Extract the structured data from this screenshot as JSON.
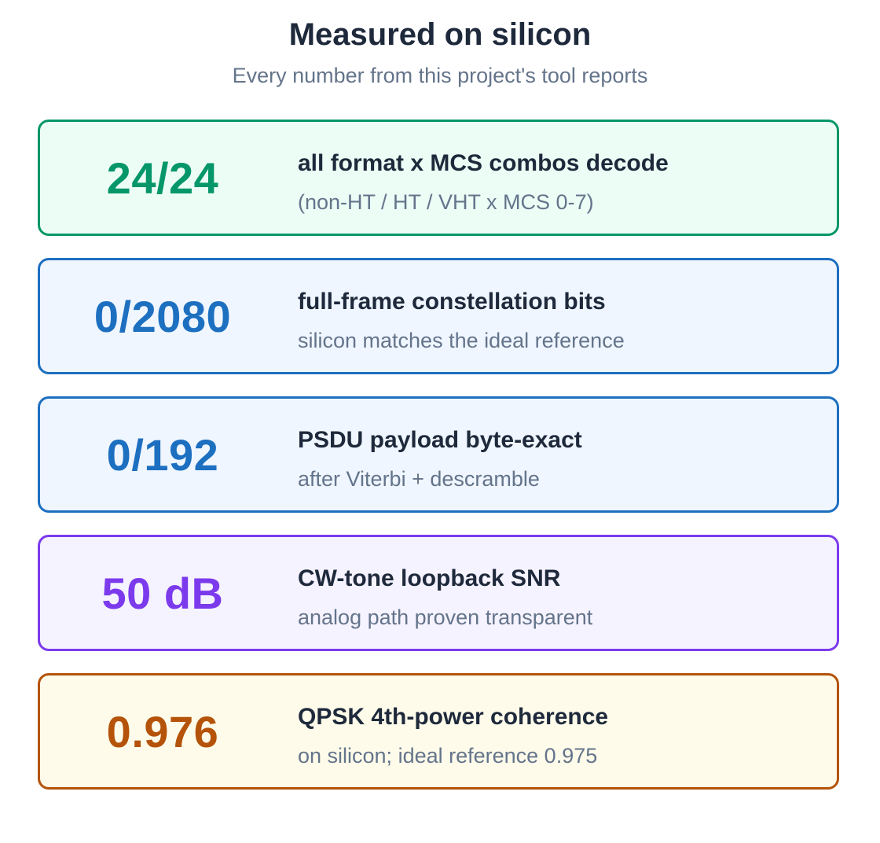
{
  "header": {
    "title": "Measured on silicon",
    "subtitle": "Every number from this project's tool reports"
  },
  "cards": [
    {
      "value": "24/24",
      "label": "all format x MCS combos decode",
      "detail": "(non-HT / HT / VHT x MCS 0-7)",
      "accent_color": "#059669",
      "background_color": "#ecfdf5"
    },
    {
      "value": "0/2080",
      "label": "full-frame constellation bits",
      "detail": "silicon matches the ideal reference",
      "accent_color": "#1d6fc0",
      "background_color": "#eff6ff"
    },
    {
      "value": "0/192",
      "label": "PSDU payload byte-exact",
      "detail": "after Viterbi + descramble",
      "accent_color": "#1d6fc0",
      "background_color": "#eff6ff"
    },
    {
      "value": "50 dB",
      "label": "CW-tone loopback SNR",
      "detail": "analog path proven transparent",
      "accent_color": "#7c3aed",
      "background_color": "#f5f3ff"
    },
    {
      "value": "0.976",
      "label": "QPSK 4th-power coherence",
      "detail": "on silicon; ideal reference 0.975",
      "accent_color": "#b45309",
      "background_color": "#fefbea"
    }
  ]
}
